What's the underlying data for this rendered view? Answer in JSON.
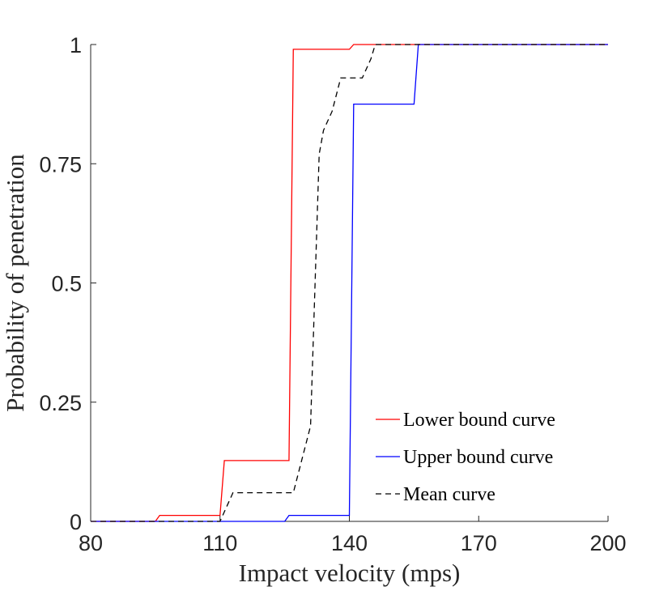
{
  "chart_data": {
    "type": "line",
    "xlabel": "Impact velocity (mps)",
    "ylabel": "Probability of penetration",
    "xlim": [
      80,
      200
    ],
    "ylim": [
      0,
      1
    ],
    "xticks": [
      80,
      110,
      140,
      170,
      200
    ],
    "xtick_labels": [
      "80",
      "110",
      "140",
      "170",
      "200"
    ],
    "yticks": [
      0,
      0.25,
      0.5,
      0.75,
      1
    ],
    "ytick_labels": [
      "0",
      "0.25",
      "0.5",
      "0.75",
      "1"
    ],
    "grid": false,
    "legend_position": "bottom-right",
    "series": [
      {
        "name": "Lower bound curve",
        "color": "#ff0000",
        "dash": "solid",
        "x": [
          80,
          95,
          96,
          110,
          111,
          126,
          127,
          140,
          141,
          200
        ],
        "y": [
          0,
          0,
          0.0125,
          0.0125,
          0.1275,
          0.1275,
          0.99,
          0.99,
          1,
          1
        ]
      },
      {
        "name": "Upper bound curve",
        "color": "#0000ff",
        "dash": "solid",
        "x": [
          80,
          125,
          126,
          140,
          141,
          155,
          156,
          200
        ],
        "y": [
          0,
          0,
          0.0125,
          0.0125,
          0.875,
          0.875,
          1,
          1
        ],
        "note_hidden": false
      },
      {
        "name": "Mean curve",
        "color": "#000000",
        "dash": "dashed",
        "x": [
          80,
          110,
          113,
          122,
          127,
          131,
          133,
          134,
          136,
          138,
          139,
          142,
          143,
          145,
          146,
          200
        ],
        "y": [
          0,
          0,
          0.06,
          0.06,
          0.06,
          0.2,
          0.77,
          0.82,
          0.86,
          0.93,
          0.93,
          0.93,
          0.93,
          0.97,
          1,
          1
        ]
      }
    ]
  }
}
